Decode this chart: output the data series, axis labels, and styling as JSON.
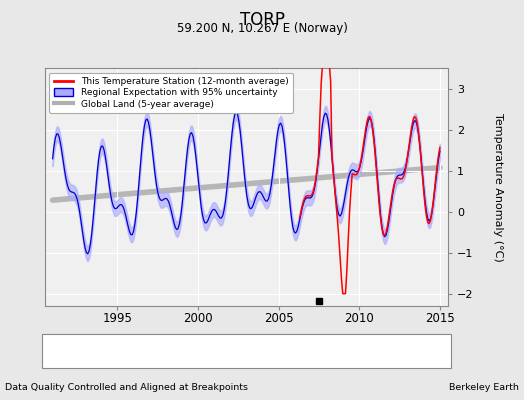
{
  "title": "TORP",
  "subtitle": "59.200 N, 10.267 E (Norway)",
  "ylabel": "Temperature Anomaly (°C)",
  "xlabel_left": "Data Quality Controlled and Aligned at Breakpoints",
  "xlabel_right": "Berkeley Earth",
  "ylim": [
    -2.3,
    3.5
  ],
  "xlim_start": 1990.5,
  "xlim_end": 2015.5,
  "xticks": [
    1995,
    2000,
    2005,
    2010,
    2015
  ],
  "yticks": [
    -2,
    -1,
    0,
    1,
    2,
    3
  ],
  "bg_color": "#e8e8e8",
  "plot_bg_color": "#f0f0f0",
  "grid_color": "#ffffff",
  "station_color": "#ff0000",
  "regional_color": "#0000cc",
  "regional_fill_color": "#aaaaff",
  "global_color": "#b0b0b0",
  "empirical_break_year": 2007.5,
  "empirical_break_value": -2.18
}
